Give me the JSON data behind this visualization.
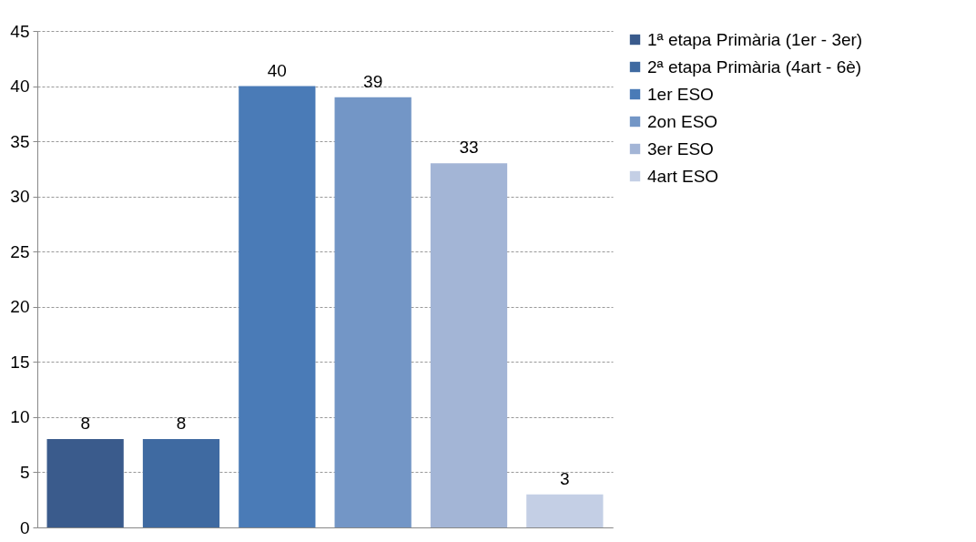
{
  "chart_data": {
    "type": "bar",
    "categories": [
      null,
      null,
      null,
      null,
      null,
      null
    ],
    "series": [
      {
        "name": "1ª etapa Primària (1er - 3er)",
        "color": "#3a5b8c",
        "values": [
          8,
          null,
          null,
          null,
          null,
          null
        ]
      },
      {
        "name": "2ª etapa Primària (4art - 6è)",
        "color": "#3f6aa1",
        "values": [
          null,
          8,
          null,
          null,
          null,
          null
        ]
      },
      {
        "name": "1er ESO",
        "color": "#4a7bb7",
        "values": [
          null,
          null,
          40,
          null,
          null,
          null
        ]
      },
      {
        "name": "2on ESO",
        "color": "#7396c6",
        "values": [
          null,
          null,
          null,
          39,
          null,
          null
        ]
      },
      {
        "name": "3er ESO",
        "color": "#a3b5d6",
        "values": [
          null,
          null,
          null,
          null,
          33,
          null
        ]
      },
      {
        "name": "4art ESO",
        "color": "#c4cfe5",
        "values": [
          null,
          null,
          null,
          null,
          null,
          3
        ]
      }
    ],
    "ylim": [
      0,
      45
    ],
    "yticks": [
      0,
      5,
      10,
      15,
      20,
      25,
      30,
      35,
      40,
      45
    ],
    "grid": "y",
    "legend": "right",
    "tick_labels": "y",
    "data_labels": true
  }
}
